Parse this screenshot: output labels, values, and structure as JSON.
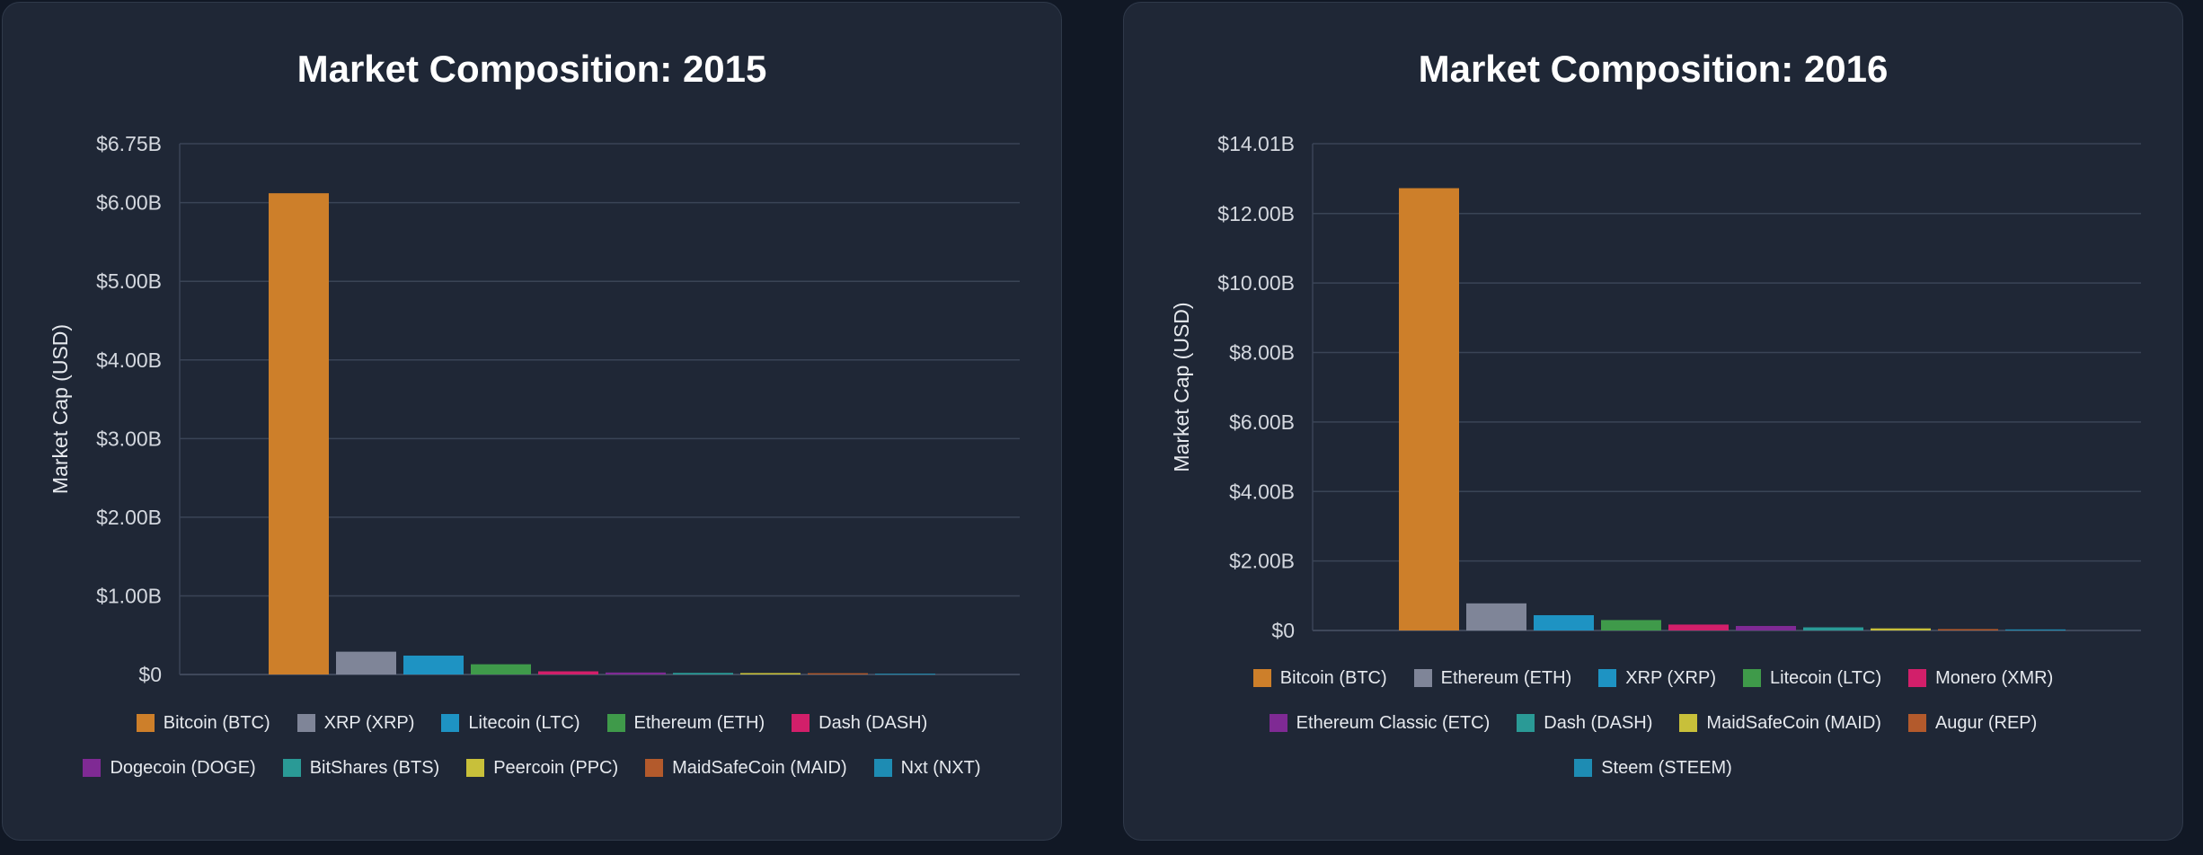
{
  "chart_data": [
    {
      "type": "bar",
      "title": "Market Composition: 2015",
      "ylabel": "Market Cap (USD)",
      "xlabel": "",
      "ylim": [
        0,
        6.75
      ],
      "yticks": [
        "$0",
        "$1.00B",
        "$2.00B",
        "$3.00B",
        "$4.00B",
        "$5.00B",
        "$6.00B",
        "$6.75B"
      ],
      "ytick_values": [
        0,
        1,
        2,
        3,
        4,
        5,
        6,
        6.75
      ],
      "value_unit": "billion USD",
      "grid": true,
      "legend_position": "bottom",
      "categories": [
        "Bitcoin (BTC)",
        "XRP (XRP)",
        "Litecoin (LTC)",
        "Ethereum (ETH)",
        "Dash (DASH)",
        "Dogecoin (DOGE)",
        "BitShares (BTS)",
        "Peercoin (PPC)",
        "MaidSafeCoin (MAID)",
        "Nxt (NXT)"
      ],
      "values": [
        6.12,
        0.29,
        0.24,
        0.13,
        0.04,
        0.025,
        0.02,
        0.018,
        0.016,
        0.01
      ],
      "colors": [
        "#cd7f2a",
        "#7f8598",
        "#1e93c3",
        "#3f9a4a",
        "#d21f6a",
        "#7f2a94",
        "#2a9a96",
        "#c8c03a",
        "#b35a2c",
        "#1e8cb3"
      ]
    },
    {
      "type": "bar",
      "title": "Market Composition: 2016",
      "ylabel": "Market Cap (USD)",
      "xlabel": "",
      "ylim": [
        0,
        14.01
      ],
      "yticks": [
        "$0",
        "$2.00B",
        "$4.00B",
        "$6.00B",
        "$8.00B",
        "$10.00B",
        "$12.00B",
        "$14.01B"
      ],
      "ytick_values": [
        0,
        2,
        4,
        6,
        8,
        10,
        12,
        14.01
      ],
      "value_unit": "billion USD",
      "grid": true,
      "legend_position": "bottom",
      "categories": [
        "Bitcoin (BTC)",
        "Ethereum (ETH)",
        "XRP (XRP)",
        "Litecoin (LTC)",
        "Monero (XMR)",
        "Ethereum Classic (ETC)",
        "Dash (DASH)",
        "MaidSafeCoin (MAID)",
        "Augur (REP)",
        "Steem (STEEM)"
      ],
      "values": [
        12.73,
        0.78,
        0.44,
        0.3,
        0.17,
        0.13,
        0.09,
        0.06,
        0.04,
        0.03
      ],
      "colors": [
        "#cd7f2a",
        "#7f8598",
        "#1e93c3",
        "#3f9a4a",
        "#d21f6a",
        "#7f2a94",
        "#2a9a96",
        "#c8c03a",
        "#b35a2c",
        "#1e8cb3"
      ]
    }
  ]
}
